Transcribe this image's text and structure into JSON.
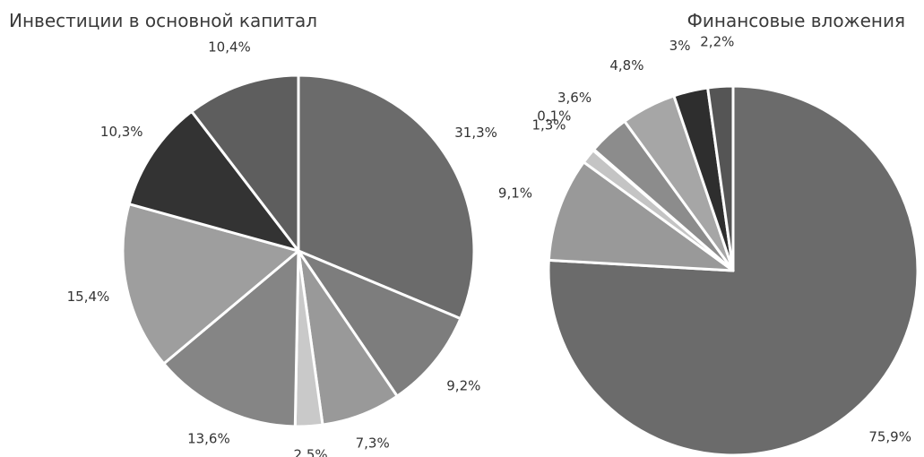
{
  "chart_data": [
    {
      "type": "pie",
      "title": "Инвестиции в основной капитал",
      "values": [
        31.3,
        9.2,
        7.3,
        2.5,
        13.6,
        15.4,
        10.3,
        10.4
      ],
      "labels": [
        "31,3%",
        "9,2%",
        "7,3%",
        "2,5%",
        "13,6%",
        "15,4%",
        "10,3%",
        "10,4%"
      ],
      "colors": [
        "#6b6b6b",
        "#7d7d7d",
        "#999999",
        "#c9c9c9",
        "#858585",
        "#9e9e9e",
        "#333333",
        "#5e5e5e"
      ]
    },
    {
      "type": "pie",
      "title": "Финансовые вложения",
      "values": [
        75.9,
        9.1,
        1.3,
        0.1,
        3.6,
        4.8,
        3,
        2.2
      ],
      "labels": [
        "75,9%",
        "9,1%",
        "1,3%",
        "0,1%",
        "3,6%",
        "4,8%",
        "3%",
        "2,2%"
      ],
      "colors": [
        "#6b6b6b",
        "#999999",
        "#c4c4c4",
        "#7a7a7a",
        "#8c8c8c",
        "#a6a6a6",
        "#2e2e2e",
        "#555555"
      ]
    }
  ]
}
